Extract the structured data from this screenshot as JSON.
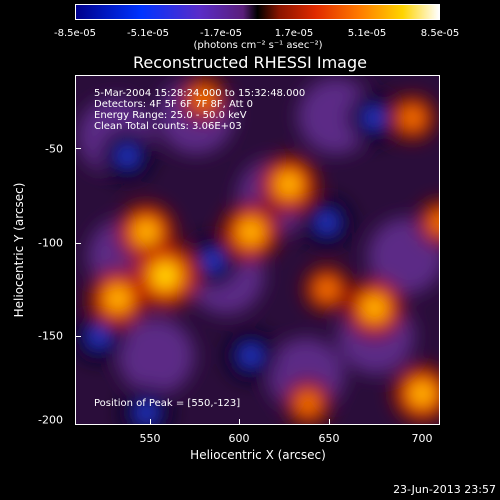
{
  "colorbar": {
    "ticks": [
      "-8.5e-05",
      "-5.1e-05",
      "-1.7e-05",
      "1.7e-05",
      "5.1e-05",
      "8.5e-05"
    ],
    "units": "(photons cm⁻² s⁻¹ asec⁻²)"
  },
  "title": "Reconstructed RHESSI Image",
  "annotations": {
    "time": "5-Mar-2004 15:28:24.000 to 15:32:48.000",
    "detectors": "Detectors: 4F 5F 6F 7F 8F, Att 0",
    "energy": "Energy Range: 25.0 - 50.0 keV",
    "clean": "Clean    Total counts: 3.06E+03",
    "peak": "Position of Peak = [550,-123]"
  },
  "axes": {
    "xlabel": "Heliocentric X (arcsec)",
    "ylabel": "Heliocentric Y (arcsec)",
    "xticks": [
      "550",
      "600",
      "650",
      "700"
    ],
    "yticks": [
      "-50",
      "-100",
      "-150",
      "-200"
    ]
  },
  "datestamp": "23-Jun-2013 23:57",
  "chart_data": {
    "type": "heatmap",
    "title": "Reconstructed RHESSI Image",
    "xlabel": "Heliocentric X (arcsec)",
    "ylabel": "Heliocentric Y (arcsec)",
    "xlim": [
      508,
      700
    ],
    "ylim": [
      -202,
      -18
    ],
    "colorbar_range": [
      -8.5e-05,
      8.5e-05
    ],
    "peak": [
      550,
      -123
    ],
    "bright_regions": [
      {
        "x": 545,
        "y": -100,
        "level": "high"
      },
      {
        "x": 530,
        "y": -135,
        "level": "high"
      },
      {
        "x": 555,
        "y": -123,
        "level": "peak"
      },
      {
        "x": 600,
        "y": -100,
        "level": "high"
      },
      {
        "x": 620,
        "y": -75,
        "level": "high"
      },
      {
        "x": 640,
        "y": -130,
        "level": "medium"
      },
      {
        "x": 665,
        "y": -140,
        "level": "high"
      },
      {
        "x": 685,
        "y": -40,
        "level": "medium"
      },
      {
        "x": 690,
        "y": -185,
        "level": "high"
      },
      {
        "x": 630,
        "y": -190,
        "level": "medium"
      },
      {
        "x": 700,
        "y": -95,
        "level": "medium"
      },
      {
        "x": 575,
        "y": -30,
        "level": "medium"
      }
    ],
    "dark_regions": [
      {
        "x": 535,
        "y": -60,
        "level": "negative"
      },
      {
        "x": 600,
        "y": -165,
        "level": "negative"
      },
      {
        "x": 640,
        "y": -95,
        "level": "negative"
      },
      {
        "x": 665,
        "y": -40,
        "level": "negative"
      },
      {
        "x": 520,
        "y": -155,
        "level": "negative"
      },
      {
        "x": 545,
        "y": -195,
        "level": "negative"
      },
      {
        "x": 580,
        "y": -115,
        "level": "negative"
      }
    ]
  }
}
